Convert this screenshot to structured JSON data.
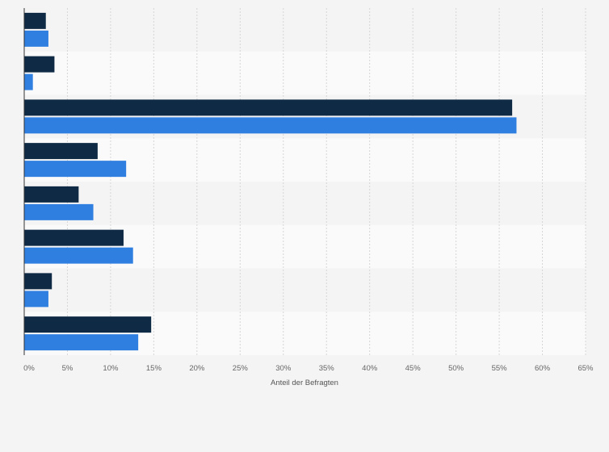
{
  "chart_data": {
    "type": "bar",
    "orientation": "horizontal",
    "categories": [
      "",
      "",
      "",
      "",
      "",
      "",
      "",
      ""
    ],
    "series": [
      {
        "color": "#0f2a44",
        "values": [
          2.5,
          3.5,
          56.5,
          8.5,
          6.3,
          11.5,
          3.2,
          14.7
        ]
      },
      {
        "color": "#2f7fe0",
        "values": [
          2.8,
          1.0,
          57.0,
          11.8,
          8.0,
          12.6,
          2.8,
          13.2
        ]
      }
    ],
    "xlabel": "Anteil der Befragten",
    "xlim": [
      0,
      65
    ],
    "xticks": [
      0,
      5,
      10,
      15,
      20,
      25,
      30,
      35,
      40,
      45,
      50,
      55,
      60,
      65
    ],
    "xtick_labels": [
      "0%",
      "5%",
      "10%",
      "15%",
      "20%",
      "25%",
      "30%",
      "35%",
      "40%",
      "45%",
      "50%",
      "55%",
      "60%",
      "65%"
    ],
    "grid": true,
    "legend": false
  }
}
